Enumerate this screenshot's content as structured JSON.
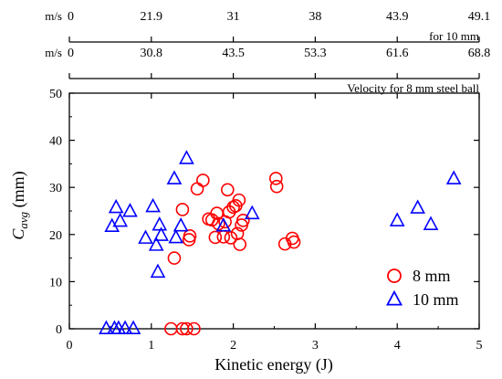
{
  "chart_data": {
    "type": "scatter",
    "xlabel": "Kinetic energy (J)",
    "ylabel_main": "C",
    "ylabel_sub": "avg",
    "ylabel_unit": " (mm)",
    "xlim": [
      0,
      5
    ],
    "ylim": [
      0,
      50
    ],
    "x_ticks": [
      0,
      1,
      2,
      3,
      4,
      5
    ],
    "y_ticks": [
      0,
      10,
      20,
      30,
      40,
      50
    ],
    "grid": false,
    "legend_position": "bottom-right",
    "series": [
      {
        "name": "8 mm",
        "marker": "circle",
        "color": "#ff0000",
        "points": [
          [
            1.24,
            0
          ],
          [
            1.38,
            0
          ],
          [
            1.43,
            0
          ],
          [
            1.52,
            0
          ],
          [
            1.28,
            15
          ],
          [
            1.38,
            25.3
          ],
          [
            1.46,
            18.9
          ],
          [
            1.47,
            19.7
          ],
          [
            1.56,
            29.7
          ],
          [
            1.63,
            31.5
          ],
          [
            1.7,
            23.3
          ],
          [
            1.74,
            23.1
          ],
          [
            1.78,
            19.4
          ],
          [
            1.8,
            24.5
          ],
          [
            1.82,
            22.3
          ],
          [
            1.88,
            19.5
          ],
          [
            1.9,
            22.7
          ],
          [
            1.93,
            29.5
          ],
          [
            1.95,
            24.8
          ],
          [
            1.97,
            19.3
          ],
          [
            2.0,
            25.8
          ],
          [
            2.03,
            26.1
          ],
          [
            2.05,
            20.2
          ],
          [
            2.07,
            27.3
          ],
          [
            2.08,
            17.9
          ],
          [
            2.1,
            22.0
          ],
          [
            2.12,
            23.0
          ],
          [
            2.52,
            31.9
          ],
          [
            2.53,
            30.2
          ],
          [
            2.63,
            18.0
          ],
          [
            2.72,
            19.2
          ],
          [
            2.74,
            18.4
          ]
        ]
      },
      {
        "name": "10 mm",
        "marker": "triangle",
        "color": "#0000ff",
        "points": [
          [
            0.45,
            0
          ],
          [
            0.55,
            0
          ],
          [
            0.6,
            0
          ],
          [
            0.68,
            0
          ],
          [
            0.78,
            0
          ],
          [
            0.52,
            21.7
          ],
          [
            0.57,
            25.7
          ],
          [
            0.62,
            22.8
          ],
          [
            0.74,
            24.9
          ],
          [
            0.93,
            19.2
          ],
          [
            1.02,
            25.9
          ],
          [
            1.06,
            17.7
          ],
          [
            1.08,
            12.0
          ],
          [
            1.1,
            22.0
          ],
          [
            1.12,
            19.8
          ],
          [
            1.28,
            31.8
          ],
          [
            1.3,
            19.3
          ],
          [
            1.36,
            21.8
          ],
          [
            1.43,
            36.1
          ],
          [
            1.88,
            21.8
          ],
          [
            2.23,
            24.4
          ],
          [
            4.0,
            22.9
          ],
          [
            4.25,
            25.6
          ],
          [
            4.41,
            22.1
          ],
          [
            4.69,
            31.8
          ]
        ]
      }
    ],
    "top_axes": [
      {
        "unit": "m/s",
        "label": "for 10 mm",
        "ticks": [
          {
            "energy": 0,
            "text": "0"
          },
          {
            "energy": 1,
            "text": "21.9"
          },
          {
            "energy": 2,
            "text": "31"
          },
          {
            "energy": 3,
            "text": "38"
          },
          {
            "energy": 4,
            "text": "43.9"
          },
          {
            "energy": 5,
            "text": "49.1"
          }
        ]
      },
      {
        "unit": "m/s",
        "label": "Velocity for 8 mm steel ball",
        "ticks": [
          {
            "energy": 0,
            "text": "0"
          },
          {
            "energy": 1,
            "text": "30.8"
          },
          {
            "energy": 2,
            "text": "43.5"
          },
          {
            "energy": 3,
            "text": "53.3"
          },
          {
            "energy": 4,
            "text": "61.6"
          },
          {
            "energy": 5,
            "text": "68.8"
          }
        ]
      }
    ]
  }
}
